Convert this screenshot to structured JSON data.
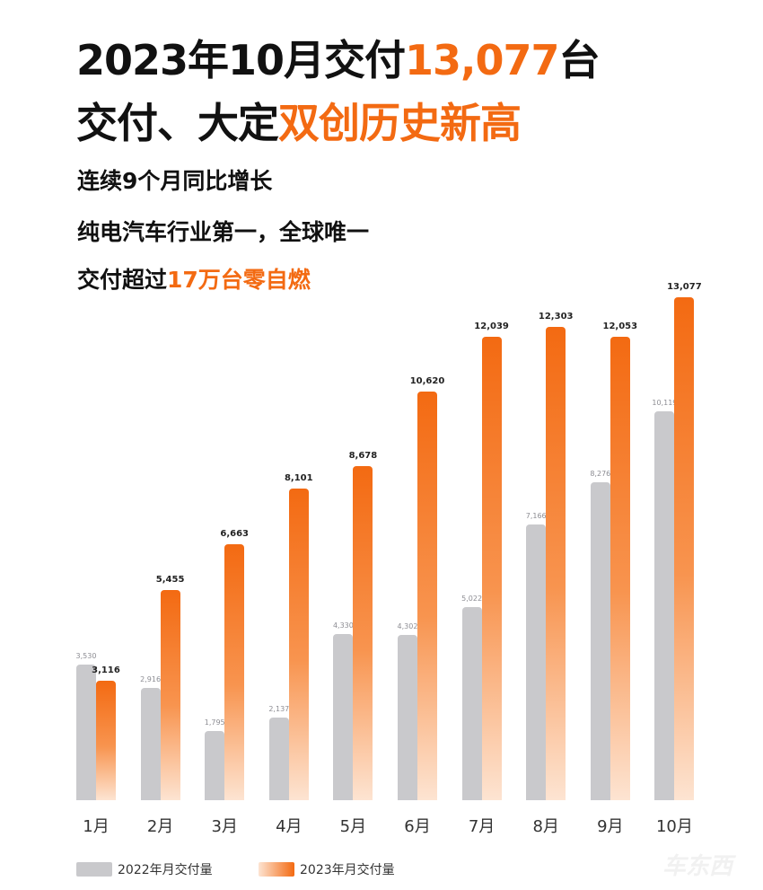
{
  "headline": {
    "line1_prefix": "2023年10月交付",
    "line1_highlight": "13,077",
    "line1_suffix": "台",
    "line2_prefix": "交付、大定",
    "line2_highlight": "双创历史新高"
  },
  "subheads": {
    "line1": "连续9个月同比增长",
    "line2": "纯电汽车行业第一，全球唯一",
    "line3_prefix": "交付超过",
    "line3_highlight": "17万台零自燃"
  },
  "legend": {
    "series1": "2022年月交付量",
    "series2": "2023年月交付量"
  },
  "watermark": "车东西",
  "colors": {
    "accent": "#f36a12",
    "gray_bar": "#c9c9cc"
  },
  "chart_data": {
    "type": "bar",
    "title": "2023年10月交付13,077台",
    "categories": [
      "1月",
      "2月",
      "3月",
      "4月",
      "5月",
      "6月",
      "7月",
      "8月",
      "9月",
      "10月"
    ],
    "series": [
      {
        "name": "2022年月交付量",
        "values": [
          3530,
          2916,
          1795,
          2137,
          4330,
          4302,
          5022,
          7166,
          8276,
          10119
        ],
        "labels": [
          "3,530",
          "2,916",
          "1,795",
          "2,137",
          "4,330",
          "4,302",
          "5,022",
          "7,166",
          "8,276",
          "10,119"
        ]
      },
      {
        "name": "2023年月交付量",
        "values": [
          3116,
          5455,
          6663,
          8101,
          8678,
          10620,
          12039,
          12303,
          12053,
          13077
        ],
        "labels": [
          "3,116",
          "5,455",
          "6,663",
          "8,101",
          "8,678",
          "10,620",
          "12,039",
          "12,303",
          "12,053",
          "13,077"
        ]
      }
    ],
    "xlabel": "",
    "ylabel": "",
    "grid": false,
    "legend_position": "bottom-left"
  }
}
